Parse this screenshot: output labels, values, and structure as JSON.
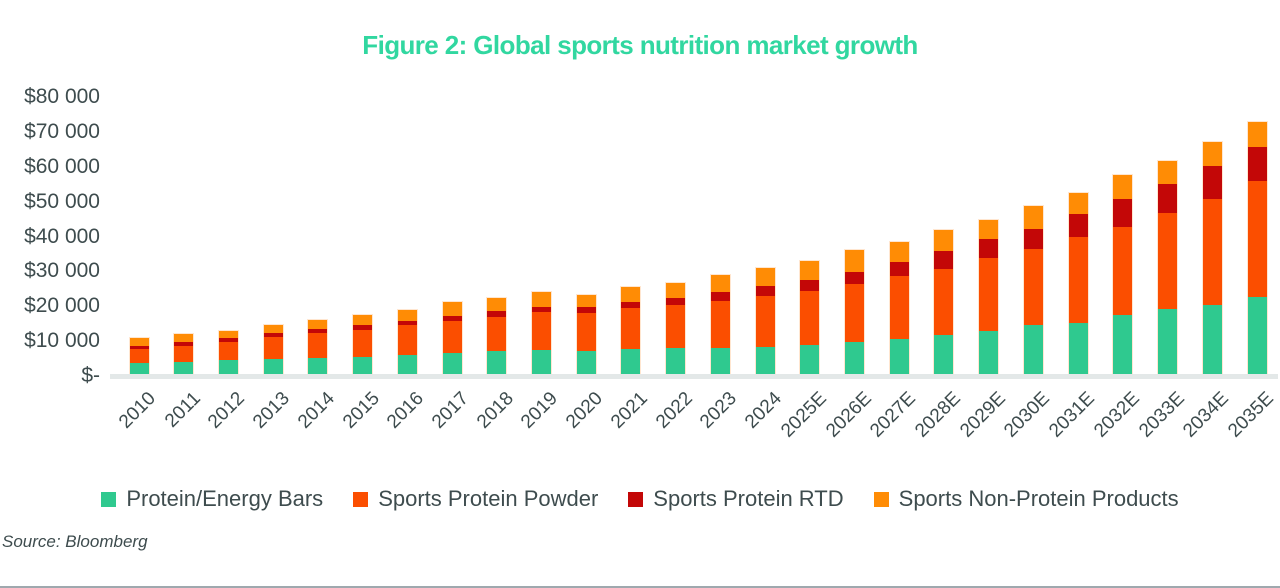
{
  "title": "Figure 2: Global sports nutrition market growth",
  "source": "Source: Bloomberg",
  "colors": {
    "title": "#31d7a0",
    "axis_text": "#3e4c4e",
    "baseline": "#e3e8e8"
  },
  "chart_data": {
    "type": "bar",
    "stacked": true,
    "grid": false,
    "legend_position": "bottom",
    "title": "Figure 2: Global sports nutrition market growth",
    "xlabel": "",
    "ylabel": "",
    "ylim": [
      0,
      80000
    ],
    "ytick_step": 10000,
    "ytick_labels": [
      "$-",
      "$10 000",
      "$20 000",
      "$30 000",
      "$40 000",
      "$50 000",
      "$60 000",
      "$70 000",
      "$80 000"
    ],
    "categories": [
      "2010",
      "2011",
      "2012",
      "2013",
      "2014",
      "2015",
      "2016",
      "2017",
      "2018",
      "2019",
      "2020",
      "2021",
      "2022",
      "2023",
      "2024",
      "2025E",
      "2026E",
      "2027E",
      "2028E",
      "2029E",
      "2030E",
      "2031E",
      "2032E",
      "2033E",
      "2034E",
      "2035E"
    ],
    "series": [
      {
        "name": "Protein/Energy Bars",
        "color": "#2fc98f",
        "values": [
          3450,
          3650,
          4300,
          4600,
          4850,
          5250,
          5700,
          6200,
          6900,
          7300,
          7000,
          7450,
          7650,
          7850,
          8150,
          8500,
          9450,
          10450,
          11400,
          12500,
          14250,
          15000,
          17100,
          18800,
          20100,
          22400
        ]
      },
      {
        "name": "Sports Protein Powder",
        "color": "#fb4e00",
        "values": [
          4000,
          4750,
          5100,
          6200,
          7100,
          7750,
          8600,
          9400,
          9800,
          10700,
          10700,
          11650,
          12450,
          13350,
          14500,
          15600,
          16750,
          17950,
          19100,
          20950,
          22000,
          24700,
          25450,
          27700,
          30300,
          33300
        ]
      },
      {
        "name": "Sports Protein RTD",
        "color": "#c30707",
        "values": [
          950,
          1150,
          1100,
          1150,
          1250,
          1300,
          1300,
          1400,
          1550,
          1600,
          1700,
          1700,
          1900,
          2600,
          2850,
          3150,
          3350,
          4100,
          5050,
          5450,
          5750,
          6400,
          7850,
          8200,
          9500,
          9700
        ]
      },
      {
        "name": "Sports Non-Protein Products",
        "color": "#ff8c05",
        "values": [
          2100,
          2100,
          2200,
          2350,
          2550,
          2900,
          3000,
          3800,
          3750,
          4300,
          3500,
          4500,
          4400,
          4800,
          5100,
          5450,
          6200,
          5650,
          5950,
          5550,
          6450,
          6200,
          6850,
          6700,
          7000,
          7100
        ]
      }
    ]
  }
}
